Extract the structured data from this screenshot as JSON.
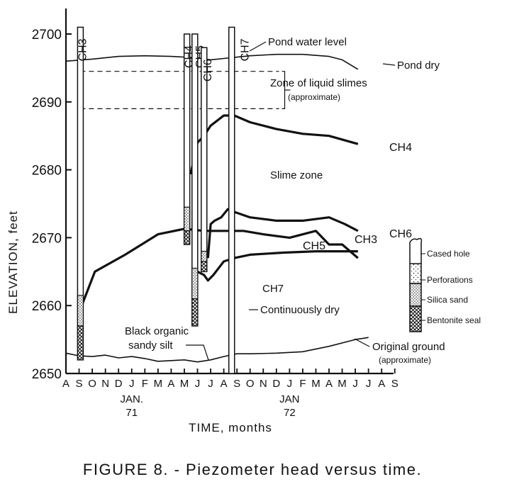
{
  "chart_data": {
    "type": "line",
    "title": "",
    "xlabel": "TIME, months",
    "ylabel": "ELEVATION, feet",
    "ylim": [
      2650,
      2700
    ],
    "y_ticks": [
      "2650",
      "2660",
      "2670",
      "2680",
      "2690",
      "2700"
    ],
    "x_month_ticks": [
      "A",
      "S",
      "O",
      "N",
      "D",
      "J",
      "F",
      "M",
      "A",
      "M",
      "J",
      "J",
      "A",
      "S",
      "O",
      "N",
      "D",
      "J",
      "F",
      "M",
      "A",
      "M",
      "J",
      "J",
      "A",
      "S"
    ],
    "x_year_labels": [
      {
        "month_index": 5,
        "label": "JAN.",
        "year": "71"
      },
      {
        "month_index": 17,
        "label": "JAN",
        "year": "72"
      }
    ],
    "xlim": [
      0,
      25
    ],
    "series": [
      {
        "name": "CH3",
        "points": [
          [
            1.1,
            2659.5
          ],
          [
            2.2,
            2665
          ],
          [
            4.5,
            2667.5
          ],
          [
            7,
            2670.5
          ],
          [
            9,
            2671.3
          ],
          [
            10.5,
            2671
          ],
          [
            13.5,
            2671
          ],
          [
            15,
            2670.5
          ],
          [
            17,
            2670
          ],
          [
            19,
            2671
          ],
          [
            20,
            2669
          ],
          [
            21,
            2669
          ],
          [
            22.2,
            2667
          ]
        ]
      },
      {
        "name": "CH4",
        "points": [
          [
            9,
            2679.5
          ],
          [
            9.5,
            2679.5
          ],
          [
            10,
            2684
          ],
          [
            10.5,
            2685
          ],
          [
            11,
            2686.5
          ],
          [
            12,
            2688
          ],
          [
            12.8,
            2688
          ],
          [
            14,
            2687
          ],
          [
            16,
            2686
          ],
          [
            18,
            2685.3
          ],
          [
            20,
            2685
          ],
          [
            22.2,
            2683.8
          ]
        ]
      },
      {
        "name": "CH5",
        "points": [
          [
            10,
            2665
          ],
          [
            10.5,
            2664.5
          ],
          [
            10.8,
            2663.7
          ],
          [
            11.2,
            2664.5
          ],
          [
            11.8,
            2666
          ],
          [
            12,
            2666.5
          ],
          [
            12.8,
            2667
          ],
          [
            14,
            2667.5
          ],
          [
            16.5,
            2667.8
          ],
          [
            19,
            2668
          ],
          [
            22.2,
            2668
          ]
        ]
      },
      {
        "name": "CH6",
        "points": [
          [
            10.8,
            2667
          ],
          [
            11,
            2672
          ],
          [
            11.3,
            2672.5
          ],
          [
            11.8,
            2673
          ],
          [
            12.3,
            2674.2
          ],
          [
            12.5,
            2674
          ],
          [
            14,
            2673
          ],
          [
            16,
            2672.5
          ],
          [
            18,
            2672.5
          ],
          [
            20,
            2673
          ],
          [
            21.2,
            2672
          ],
          [
            22.2,
            2671
          ]
        ]
      },
      {
        "name": "Pond water level",
        "points": [
          [
            0,
            2696
          ],
          [
            2,
            2696.3
          ],
          [
            4,
            2696.7
          ],
          [
            6,
            2696.8
          ],
          [
            8,
            2696.7
          ],
          [
            10,
            2696.5
          ],
          [
            11,
            2696.2
          ],
          [
            12,
            2696.4
          ],
          [
            14,
            2696.8
          ],
          [
            16,
            2697
          ],
          [
            18,
            2697
          ],
          [
            20,
            2696.7
          ],
          [
            21,
            2696.2
          ],
          [
            22.2,
            2694.8
          ]
        ]
      },
      {
        "name": "Original ground",
        "points": [
          [
            0,
            2653
          ],
          [
            1,
            2652.6
          ],
          [
            2,
            2652.5
          ],
          [
            3,
            2652.7
          ],
          [
            4,
            2652.3
          ],
          [
            5,
            2652.5
          ],
          [
            6,
            2652.2
          ],
          [
            7,
            2651.8
          ],
          [
            8,
            2651.9
          ],
          [
            9,
            2652
          ],
          [
            10,
            2651.7
          ],
          [
            11,
            2652
          ],
          [
            12,
            2652.5
          ],
          [
            13,
            2652.9
          ],
          [
            14,
            2652.9
          ],
          [
            16,
            2653
          ],
          [
            18,
            2653.2
          ],
          [
            20,
            2654
          ],
          [
            22,
            2655
          ],
          [
            23,
            2655.3
          ]
        ]
      }
    ],
    "liquid_slimes_zone": {
      "low": 2689,
      "high": 2694.5,
      "x_start": 1.1,
      "x_end": 16.2
    },
    "piezometers": [
      {
        "name": "CH3",
        "x": 1.1,
        "top": 2701,
        "bottom": 2652,
        "seal_top": 2657,
        "sand_top": 2661.5
      },
      {
        "name": "CH4",
        "x": 9.2,
        "top": 2700,
        "bottom": 2669,
        "seal_top": 2671,
        "sand_top": 2674.5
      },
      {
        "name": "CH5",
        "x": 9.8,
        "top": 2700,
        "bottom": 2657,
        "seal_top": 2661,
        "sand_top": 2665.5
      },
      {
        "name": "CH6",
        "x": 10.5,
        "top": 2698,
        "bottom": 2665,
        "seal_top": 2666.5,
        "sand_top": 2668
      },
      {
        "name": "CH7",
        "x": 12.6,
        "top": 2701,
        "bottom": 2650,
        "seal_top": null,
        "sand_top": null
      }
    ],
    "annotations": {
      "pond_water_level": "Pond water level",
      "pond_dry": "Pond dry",
      "liquid_slimes_1": "Zone of liquid slimes",
      "liquid_slimes_2": "(approximate)",
      "slime_zone": "Slime zone",
      "ch7_label": "CH7",
      "continuously_dry": "Continuously dry",
      "black_silt_1": "Black organic",
      "black_silt_2": "sandy silt",
      "original_ground": "Original ground",
      "original_ground_2": "(approximate)"
    },
    "legend": {
      "placement": "right",
      "items": [
        "Cased hole",
        "Perforations",
        "Silica sand",
        "Bentonite seal"
      ]
    },
    "caption": "FIGURE 8. - Piezometer head versus time."
  }
}
